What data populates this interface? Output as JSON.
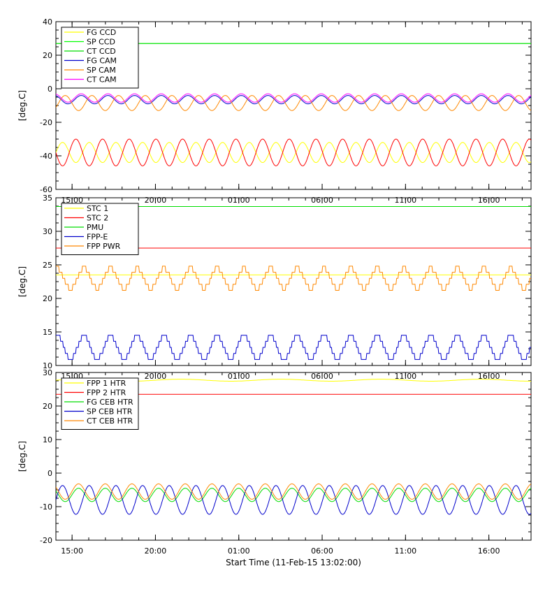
{
  "chart_data": [
    {
      "type": "line",
      "ylabel": "[deg.C]",
      "ylim": [
        -60,
        40
      ],
      "yticks": [
        40,
        20,
        0,
        -20,
        -40,
        -60
      ],
      "xticks": [
        "15:00",
        "20:00",
        "01:00",
        "06:00",
        "11:00",
        "16:00"
      ],
      "xrange_hours": [
        0,
        28.5
      ],
      "legend": "top-left",
      "series": [
        {
          "name": "FG CCD",
          "color": "#ffff00",
          "base": -38,
          "amp": 6,
          "period": 1.6,
          "phase": 0.0
        },
        {
          "name": "SP CCD",
          "color": "#00ff00",
          "base": 27,
          "amp": 0,
          "period": 1.6,
          "phase": 0.0
        },
        {
          "name": "CT CCD",
          "color": "#00dd00",
          "base": 27,
          "amp": 0,
          "period": 1.6,
          "phase": 0.0
        },
        {
          "name": "FG CAM",
          "color": "#0000cc",
          "base": -6.5,
          "amp": 2.5,
          "period": 1.6,
          "phase": 0.3
        },
        {
          "name": "SP CAM",
          "color": "#ff8800",
          "base": -8.5,
          "amp": 4.5,
          "period": 1.6,
          "phase": 0.9
        },
        {
          "name": "CT CAM",
          "color": "#ff00ff",
          "base": -5.5,
          "amp": 2.5,
          "period": 1.6,
          "phase": 0.3
        },
        {
          "name": "",
          "color": "#ff0000",
          "base": -38,
          "amp": 8,
          "period": 1.6,
          "phase": 0.5
        }
      ]
    },
    {
      "type": "line",
      "ylabel": "[deg.C]",
      "ylim": [
        10,
        35
      ],
      "yticks": [
        35,
        30,
        25,
        20,
        15,
        10
      ],
      "xticks": [
        "15:00",
        "20:00",
        "01:00",
        "06:00",
        "11:00",
        "16:00"
      ],
      "xrange_hours": [
        0,
        28.5
      ],
      "legend": "top-left",
      "series": [
        {
          "name": "STC 1",
          "color": "#ffff00",
          "base": 23.5,
          "amp": 0,
          "period": 1.6,
          "phase": 0.0
        },
        {
          "name": "STC 2",
          "color": "#ff0000",
          "base": 27.5,
          "amp": 0,
          "period": 1.6,
          "phase": 0.0
        },
        {
          "name": "PMU",
          "color": "#00dd00",
          "base": 33.7,
          "amp": 0,
          "period": 1.6,
          "phase": 0.0
        },
        {
          "name": "FPP-E",
          "color": "#0000cc",
          "base": 12.7,
          "amp": 1.7,
          "period": 1.6,
          "phase": 0.2,
          "step": 0.9
        },
        {
          "name": "FPP PWR",
          "color": "#ff8800",
          "base": 23.0,
          "amp": 1.5,
          "period": 1.6,
          "phase": 0.2,
          "step": 0.9
        }
      ]
    },
    {
      "type": "line",
      "ylabel": "[deg.C]",
      "xlabel": "Start Time (11-Feb-15 13:02:00)",
      "ylim": [
        -20,
        30
      ],
      "yticks": [
        30,
        20,
        10,
        0,
        -10,
        -20
      ],
      "xticks": [
        "15:00",
        "20:00",
        "01:00",
        "06:00",
        "11:00",
        "16:00"
      ],
      "xrange_hours": [
        0,
        28.5
      ],
      "legend": "top-left",
      "series": [
        {
          "name": "FPP 1 HTR",
          "color": "#ffff00",
          "base": 27.7,
          "amp": 0.3,
          "period": 6.0,
          "phase": 0.0
        },
        {
          "name": "FPP 2 HTR",
          "color": "#ff0000",
          "base": 23.5,
          "amp": 0,
          "period": 1.6,
          "phase": 0.0
        },
        {
          "name": "FG CEB HTR",
          "color": "#00dd00",
          "base": -6.5,
          "amp": 2.0,
          "period": 1.6,
          "phase": 0.4
        },
        {
          "name": "SP CEB HTR",
          "color": "#0000cc",
          "base": -8.0,
          "amp": 4.3,
          "period": 1.6,
          "phase": 1.0
        },
        {
          "name": "CT CEB HTR",
          "color": "#ff8800",
          "base": -5.5,
          "amp": 2.3,
          "period": 1.6,
          "phase": 0.4
        }
      ]
    }
  ]
}
